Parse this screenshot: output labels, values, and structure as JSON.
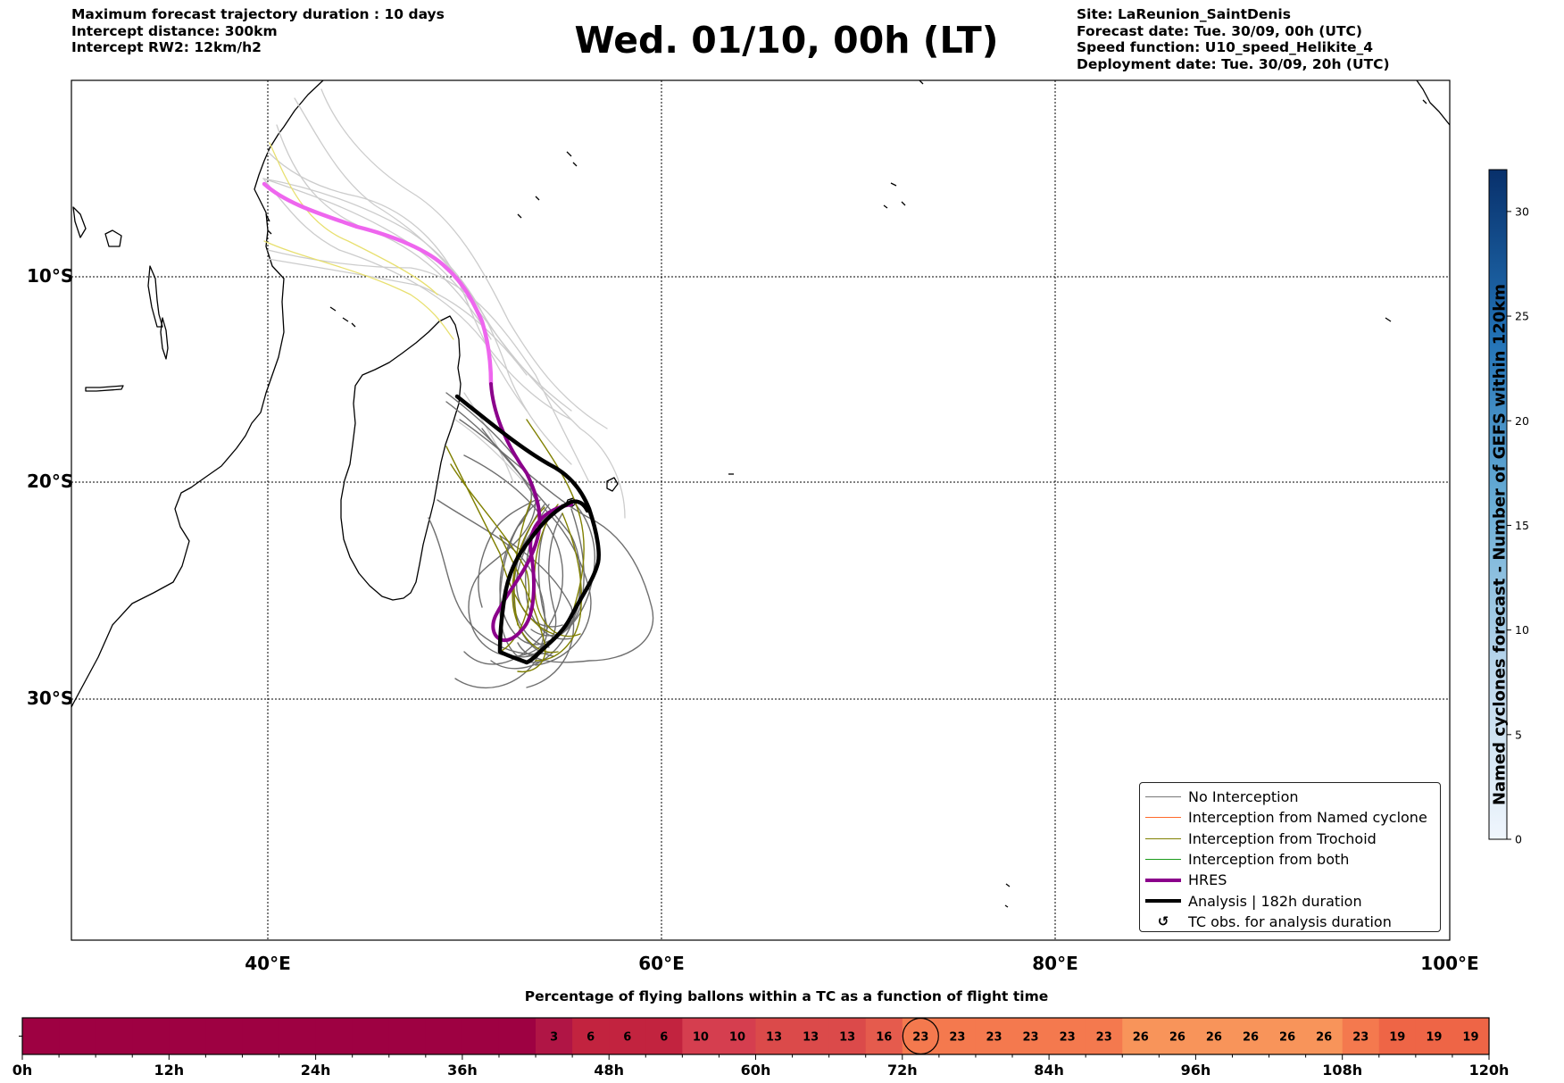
{
  "header_left": {
    "line1": "Maximum forecast trajectory duration : 10 days",
    "line2": "Intercept distance: 300km",
    "line3": "Intercept RW2: 12km/h2"
  },
  "title": "Wed. 01/10, 00h (LT)",
  "header_right": {
    "line1": "Site: LaReunion_SaintDenis",
    "line2": "Forecast date: Tue. 30/09, 00h (UTC)",
    "line3": "Speed function: U10_speed_Helikite_4",
    "line4": "Deployment date: Tue. 30/09, 20h (UTC)"
  },
  "map": {
    "lat_labels": [
      "10°S",
      "20°S",
      "30°S"
    ],
    "lon_labels": [
      "40°E",
      "60°E",
      "80°E",
      "100°E"
    ],
    "colors": {
      "no_interception": "#777777",
      "named_cyclone": "#ff6a2b",
      "trochoid": "#808000",
      "both": "#1a9a1a",
      "hres": "#8b008b",
      "hres_early": "#ee66ee",
      "analysis": "#000000",
      "ensemble_early": "#cccccc",
      "trochoid_early": "#e8e070"
    }
  },
  "legend": {
    "items": [
      {
        "label": "No Interception",
        "symbol": "thin-gray-line"
      },
      {
        "label": "Interception from Named cyclone",
        "symbol": "thin-orange-line"
      },
      {
        "label": "Interception from Trochoid",
        "symbol": "thin-olive-line"
      },
      {
        "label": "Interception from both",
        "symbol": "thin-green-line"
      },
      {
        "label": "HRES",
        "symbol": "thick-purple-line"
      },
      {
        "label": "Analysis | 182h duration",
        "symbol": "thick-black-line"
      },
      {
        "label": "TC obs. for analysis duration",
        "symbol": "cyclone-glyph",
        "glyph": "↺"
      }
    ]
  },
  "colorbar": {
    "title": "Named cyclones forecast - Number of GEFS within 120km",
    "ticks": [
      "0",
      "5",
      "10",
      "15",
      "20",
      "25",
      "30"
    ],
    "min": 0,
    "max": 32
  },
  "timeline": {
    "title": "Percentage of flying ballons within a TC as a function of flight time",
    "hour_labels": [
      "0h",
      "12h",
      "24h",
      "36h",
      "48h",
      "60h",
      "72h",
      "84h",
      "96h",
      "108h",
      "120h"
    ],
    "values": [
      0,
      0,
      0,
      0,
      0,
      0,
      0,
      0,
      0,
      0,
      0,
      0,
      0,
      0,
      3,
      6,
      6,
      6,
      10,
      10,
      13,
      13,
      13,
      16,
      23,
      23,
      23,
      23,
      23,
      23,
      26,
      26,
      26,
      26,
      26,
      26,
      23,
      19,
      19,
      19
    ],
    "current_index": 24,
    "step_hours": 3
  }
}
